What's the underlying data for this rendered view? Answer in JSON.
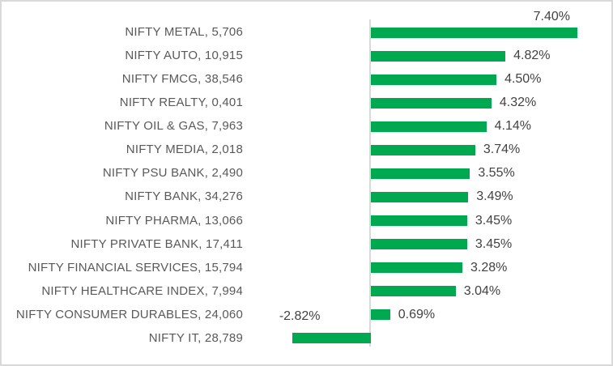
{
  "chart_data": {
    "type": "bar",
    "orientation": "horizontal",
    "title": "",
    "xlabel": "",
    "ylabel": "",
    "grid": false,
    "legend": false,
    "xlim": [
      -4.2,
      8.6
    ],
    "bar_color": "#00a94f",
    "category_label_color": "#595959",
    "value_label_color": "#424242",
    "axis_line_color": "#d9d9d9",
    "categories": [
      "NIFTY METAL, 5,706",
      "NIFTY AUTO, 10,915",
      "NIFTY FMCG, 38,546",
      "NIFTY REALTY, 0,401",
      "NIFTY OIL & GAS, 7,963",
      "NIFTY MEDIA, 2,018",
      "NIFTY PSU BANK, 2,490",
      "NIFTY BANK, 34,276",
      "NIFTY PHARMA, 13,066",
      "NIFTY PRIVATE BANK, 17,411",
      "NIFTY FINANCIAL SERVICES, 15,794",
      "NIFTY HEALTHCARE INDEX, 7,994",
      "NIFTY CONSUMER DURABLES, 24,060",
      "NIFTY IT, 28,789"
    ],
    "values": [
      7.4,
      4.82,
      4.5,
      4.32,
      4.14,
      3.74,
      3.55,
      3.49,
      3.45,
      3.45,
      3.28,
      3.04,
      0.69,
      -2.82
    ],
    "value_labels": [
      "7.40%",
      "4.82%",
      "4.50%",
      "4.32%",
      "4.14%",
      "3.74%",
      "3.55%",
      "3.49%",
      "3.45%",
      "3.45%",
      "3.28%",
      "3.04%",
      "0.69%",
      "-2.82%"
    ]
  }
}
